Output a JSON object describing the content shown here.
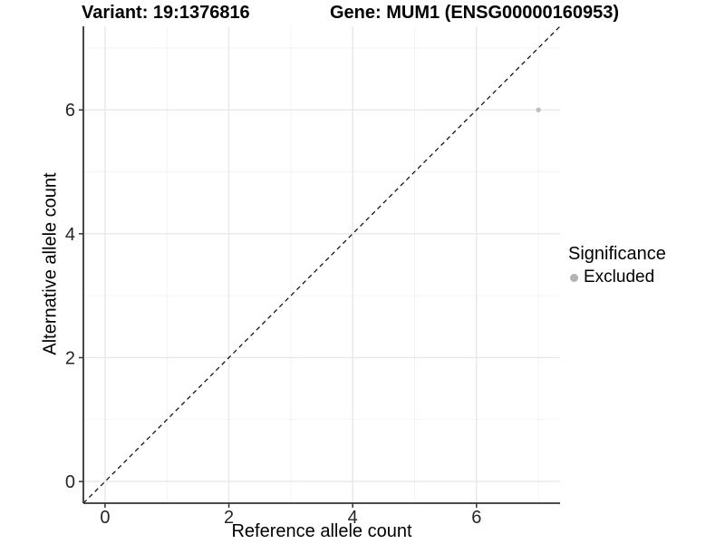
{
  "header": {
    "variant_title": "Variant: 19:1376816",
    "gene_title": "Gene: MUM1 (ENSG00000160953)"
  },
  "chart_data": {
    "type": "scatter",
    "titles": [
      "Variant: 19:1376816",
      "Gene: MUM1 (ENSG00000160953)"
    ],
    "xlabel": "Reference allele count",
    "ylabel": "Alternative allele count",
    "xlim": [
      -0.35,
      7.35
    ],
    "ylim": [
      -0.35,
      7.35
    ],
    "x_major_ticks": [
      0,
      2,
      4,
      6
    ],
    "y_major_ticks": [
      0,
      2,
      4,
      6
    ],
    "x_minor_gridlines": [
      1,
      3,
      5,
      7
    ],
    "y_minor_gridlines": [
      1,
      3,
      5,
      7
    ],
    "grid": true,
    "series": [
      {
        "name": "Excluded",
        "color": "#bdbdbd",
        "point_radius": 2.7,
        "points": [
          {
            "x": 7,
            "y": 6
          }
        ]
      }
    ],
    "identity_line": {
      "style": "dashed",
      "color": "#000000",
      "from": [
        -0.35,
        -0.35
      ],
      "to": [
        7.35,
        7.35
      ]
    },
    "legend": {
      "title": "Significance",
      "position": "right",
      "items": [
        {
          "label": "Excluded",
          "color": "#b3b3b3"
        }
      ]
    }
  },
  "colors": {
    "background": "#ffffff",
    "grid_major": "#e8e8e8",
    "grid_minor": "#f3f3f3",
    "axis_line": "#333333",
    "tick_label": "#262626",
    "title_text": "#000000"
  }
}
